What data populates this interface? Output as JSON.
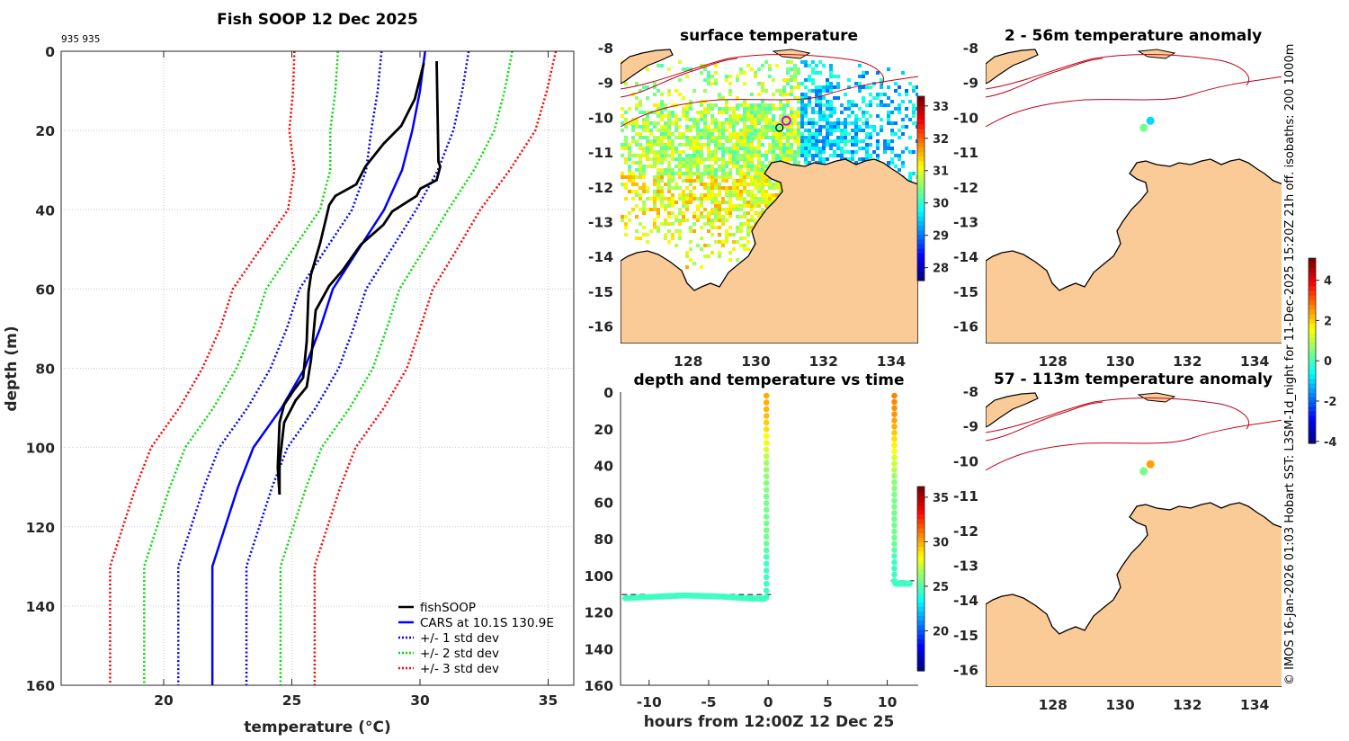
{
  "chart_data": [
    {
      "type": "line",
      "title": "Fish SOOP 12 Dec 2025",
      "annotation": "935 935",
      "xlabel": "temperature (°C)",
      "xlabel_base": "temperature (",
      "xlabel_sup": "o",
      "xlabel_end": "C)",
      "ylabel": "depth (m)",
      "xlim": [
        16,
        36
      ],
      "ylim": [
        0,
        160
      ],
      "ylim_reversed": true,
      "xticks": [
        20,
        25,
        30,
        35
      ],
      "yticks": [
        0,
        20,
        40,
        60,
        80,
        100,
        120,
        140,
        160
      ],
      "grid": true,
      "legend_position": "bottom-right",
      "legend": [
        "fishSOOP",
        "CARS at 10.1S 130.9E",
        "+/- 1 std dev",
        "+/- 2 std dev",
        "+/- 3 std dev"
      ],
      "colors": {
        "fishSOOP": "#000000",
        "cars": "#0000ff",
        "std1": "#0000ff",
        "std2": "#00dd00",
        "std3": "#ff0000"
      },
      "cars_depth": [
        0,
        10,
        20,
        30,
        40,
        50,
        60,
        70,
        80,
        90,
        100,
        110,
        120,
        130,
        160
      ],
      "cars_mean": [
        30.2,
        30.0,
        29.7,
        29.3,
        28.6,
        27.6,
        26.6,
        26.1,
        25.5,
        24.6,
        23.5,
        22.9,
        22.4,
        21.9,
        21.9
      ],
      "cars_std": [
        1.7,
        1.65,
        1.6,
        1.4,
        1.25,
        1.28,
        1.3,
        1.3,
        1.33,
        1.33,
        1.33,
        1.33,
        1.33,
        1.33,
        1.33
      ],
      "fishsoop_casts": [
        {
          "name": "cast-1",
          "temp": [
            30.65,
            30.72,
            30.79,
            30.65,
            30.01,
            29.87,
            28.92,
            28.57,
            27.69,
            26.99,
            26.46,
            25.93,
            25.75,
            25.58,
            25.15,
            24.7,
            24.52,
            24.52
          ],
          "depth": [
            2.5,
            27.9,
            29.1,
            32.5,
            34.7,
            36.5,
            40.4,
            43.8,
            48.8,
            55.2,
            59.2,
            65.4,
            77.8,
            84.7,
            88.1,
            93.7,
            104.0,
            111.9
          ]
        },
        {
          "name": "cast-2",
          "temp": [
            30.15,
            29.8,
            29.27,
            28.57,
            27.87,
            27.51,
            26.7,
            26.46,
            26.11,
            25.75,
            25.65,
            25.58,
            25.44,
            25.05,
            24.7,
            24.52,
            24.45,
            24.52
          ],
          "depth": [
            3.0,
            12.0,
            18.8,
            23.4,
            29.1,
            33.6,
            36.5,
            38.8,
            48.3,
            56.3,
            60.8,
            73.3,
            82.4,
            85.8,
            89.2,
            93.7,
            105.1,
            111.9
          ]
        }
      ]
    },
    {
      "type": "heatmap",
      "title": "surface temperature",
      "xlim": [
        126,
        134.8
      ],
      "ylim": [
        -16.5,
        -8
      ],
      "xticks": [
        128,
        130,
        132,
        134
      ],
      "yticks": [
        -8,
        -9,
        -10,
        -11,
        -12,
        -13,
        -14,
        -15,
        -16
      ],
      "colorbar": {
        "range": [
          27.6,
          33.3
        ],
        "ticks": [
          28,
          29,
          30,
          31,
          32,
          33
        ]
      },
      "markers": [
        {
          "lon": 130.9,
          "lat": -10.1,
          "style": "magenta-ring"
        },
        {
          "lon": 130.7,
          "lat": -10.3,
          "style": "black-ring"
        }
      ]
    },
    {
      "type": "scatter",
      "title": "depth and temperature vs time",
      "xlabel": "hours from 12:00Z 12 Dec 25",
      "xlim": [
        -12.4,
        12.6
      ],
      "ylim": [
        0,
        160
      ],
      "ylim_reversed": true,
      "xticks": [
        -10,
        -5,
        0,
        5,
        10
      ],
      "yticks": [
        0,
        20,
        40,
        60,
        80,
        100,
        120,
        140,
        160
      ],
      "colorbar": {
        "range": [
          15.5,
          36.2
        ],
        "ticks": [
          20,
          25,
          30,
          35
        ]
      },
      "tracks": [
        {
          "hours": [
            -12.0,
            -9.0,
            -7.0,
            -4.0,
            -2.0,
            -0.4,
            -0.15,
            -0.15
          ],
          "depth": [
            112.5,
            111.5,
            111.0,
            111.5,
            112.5,
            112.8,
            112.0,
            2.0
          ],
          "bottom_depth": 110.5
        },
        {
          "hours": [
            10.6,
            10.6,
            10.7,
            11.9
          ],
          "depth": [
            2.0,
            103.0,
            104.5,
            104.5
          ],
          "bottom_depth": 103.0
        }
      ]
    },
    {
      "type": "heatmap",
      "title": "2 - 56m temperature anomaly",
      "xlim": [
        126,
        134.8
      ],
      "ylim": [
        -16.5,
        -8
      ],
      "xticks": [
        128,
        130,
        132,
        134
      ],
      "yticks": [
        -8,
        -9,
        -10,
        -11,
        -12,
        -13,
        -14,
        -15,
        -16
      ],
      "markers": [
        {
          "lon": 130.9,
          "lat": -10.1,
          "anomaly": -1.0
        },
        {
          "lon": 130.7,
          "lat": -10.3,
          "anomaly": 0.4
        }
      ]
    },
    {
      "type": "heatmap",
      "title": "57 - 113m temperature anomaly",
      "xlim": [
        126,
        134.8
      ],
      "ylim": [
        -16.5,
        -8
      ],
      "xticks": [
        128,
        130,
        132,
        134
      ],
      "yticks": [
        -8,
        -9,
        -10,
        -11,
        -12,
        -13,
        -14,
        -15,
        -16
      ],
      "colorbar": {
        "range": [
          -4.1,
          5.1
        ],
        "ticks": [
          -4,
          -2,
          0,
          2,
          4
        ]
      },
      "markers": [
        {
          "lon": 130.9,
          "lat": -10.1,
          "anomaly": 2.5
        },
        {
          "lon": 130.7,
          "lat": -10.3,
          "anomaly": 0.4
        }
      ]
    }
  ],
  "credit": "© IMOS 16-Jan-2026 01:03 Hobart SST: L3SM-1d_night for 11-Dec-2025 15:20Z 21h off. isobaths: 200  1000m"
}
